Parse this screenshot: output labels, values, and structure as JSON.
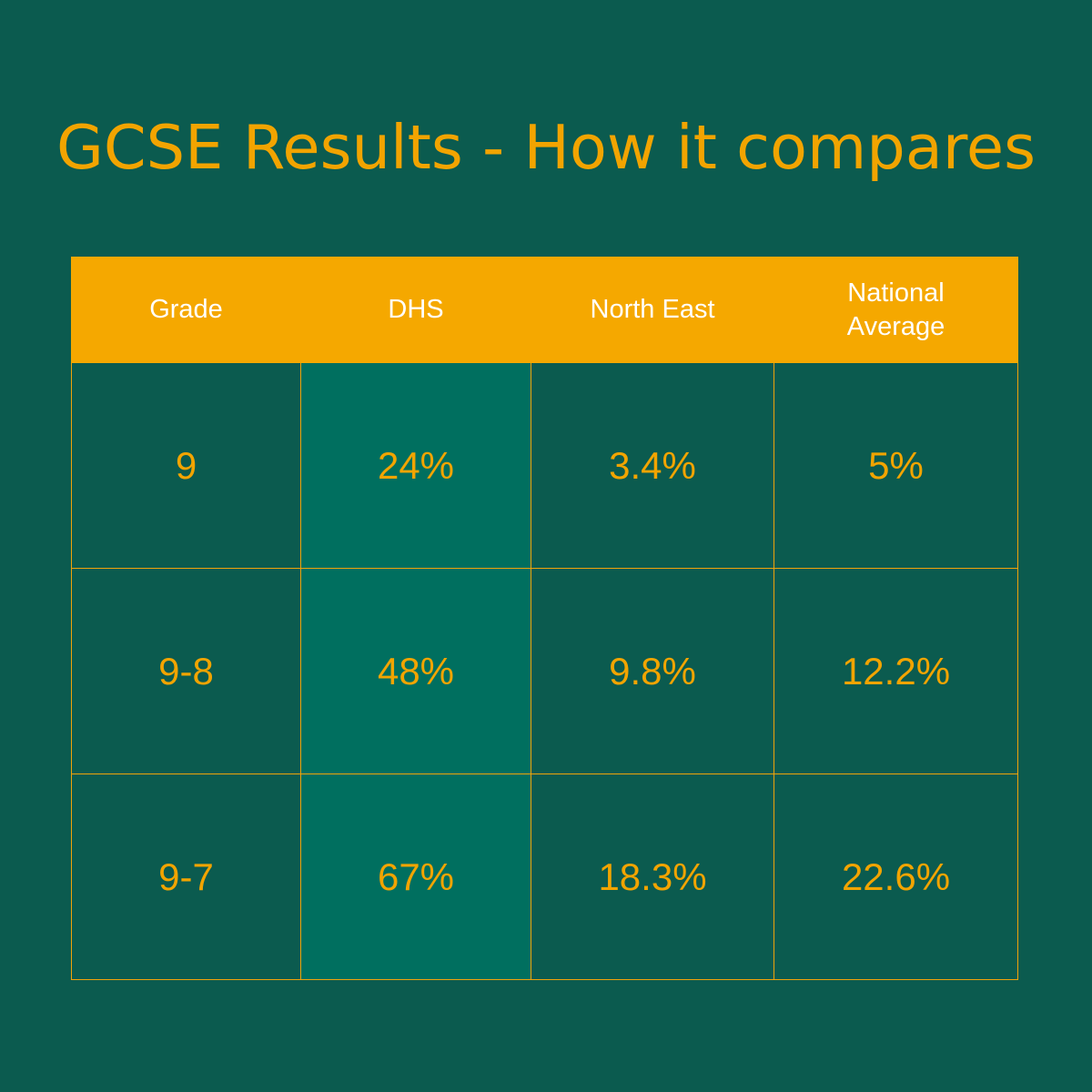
{
  "title": "GCSE Results - How it compares",
  "colors": {
    "background": "#0b5b4f",
    "header_background": "#f5a800",
    "highlight_column": "#006f5f",
    "accent_text": "#f2a400",
    "header_text": "#ffffff"
  },
  "table": {
    "headers": [
      "Grade",
      "DHS",
      "North East",
      "National Average"
    ],
    "rows": [
      [
        "9",
        "24%",
        "3.4%",
        "5%"
      ],
      [
        "9-8",
        "48%",
        "9.8%",
        "12.2%"
      ],
      [
        "9-7",
        "67%",
        "18.3%",
        "22.6%"
      ]
    ]
  },
  "chart_data": {
    "type": "table",
    "title": "GCSE Results - How it compares",
    "columns": [
      "Grade",
      "DHS",
      "North East",
      "National Average"
    ],
    "rows": [
      {
        "Grade": "9",
        "DHS": 24,
        "North East": 3.4,
        "National Average": 5
      },
      {
        "Grade": "9-8",
        "DHS": 48,
        "North East": 9.8,
        "National Average": 12.2
      },
      {
        "Grade": "9-7",
        "DHS": 67,
        "North East": 18.3,
        "National Average": 22.6
      }
    ],
    "unit": "%",
    "highlighted_column": "DHS"
  }
}
